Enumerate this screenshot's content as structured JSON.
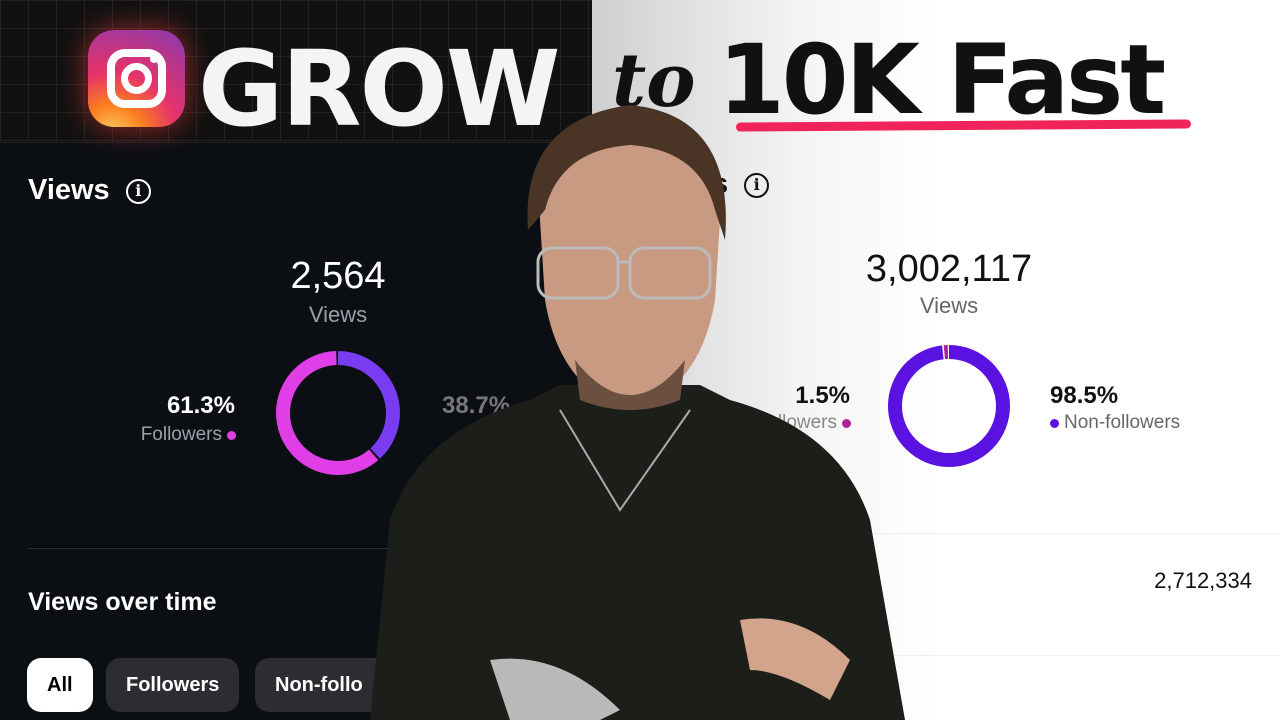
{
  "headline": {
    "word1": "GROW",
    "word2": "to",
    "word3": "10K Fast",
    "accent": "#f0245a"
  },
  "left_panel": {
    "section_title": "Views",
    "total": "2,564",
    "total_label": "Views",
    "followers_pct": "61.3%",
    "followers_label": "Followers",
    "nonfollowers_pct": "38.7%",
    "donut": {
      "followers": 61.3,
      "non_followers": 38.7,
      "followers_color": "#e03ee6",
      "non_followers_color": "#7a3cf0"
    },
    "over_time_title": "Views over time",
    "filters": [
      {
        "label": "All",
        "selected": true
      },
      {
        "label": "Followers",
        "selected": false
      },
      {
        "label": "Non-follo",
        "selected": false
      }
    ]
  },
  "right_panel": {
    "section_title": "s",
    "total": "3,002,117",
    "total_label": "Views",
    "followers_pct": "1.5%",
    "followers_label": "llowers",
    "nonfollowers_pct": "98.5%",
    "nonfollowers_label": "Non-followers",
    "donut": {
      "followers": 1.5,
      "non_followers": 98.5,
      "followers_color": "#b0209a",
      "non_followers_color": "#5a12e0"
    },
    "row_value": "2,712,334"
  }
}
